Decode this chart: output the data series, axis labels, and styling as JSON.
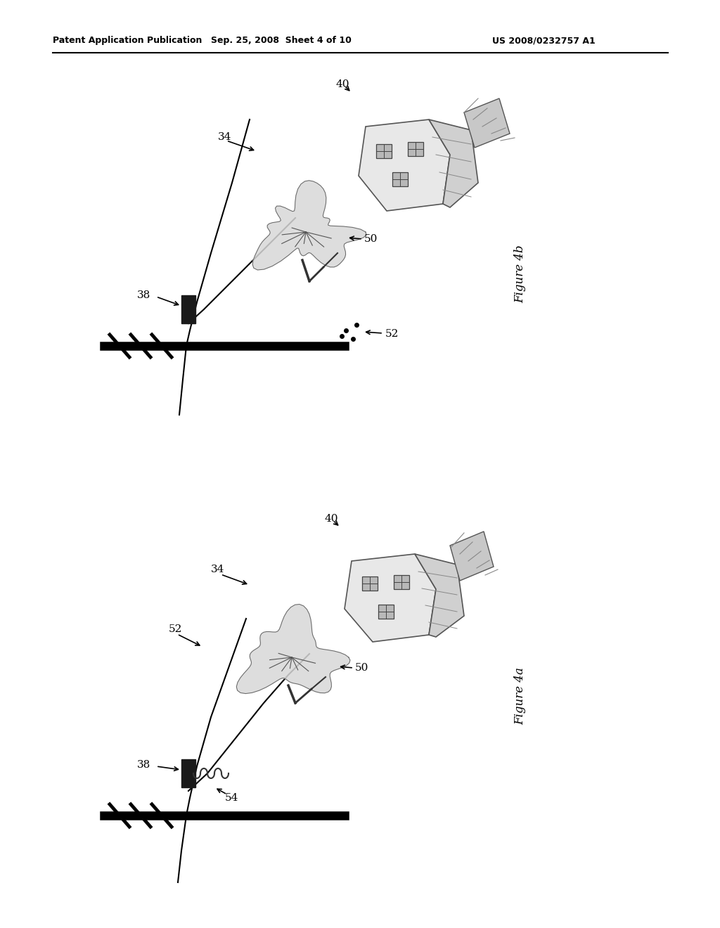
{
  "page_title_left": "Patent Application Publication",
  "page_title_center": "Sep. 25, 2008  Sheet 4 of 10",
  "page_title_right": "US 2008/0232757 A1",
  "fig_top_label": "Figure 4b",
  "fig_bottom_label": "Figure 4a",
  "bg_color": "#ffffff"
}
